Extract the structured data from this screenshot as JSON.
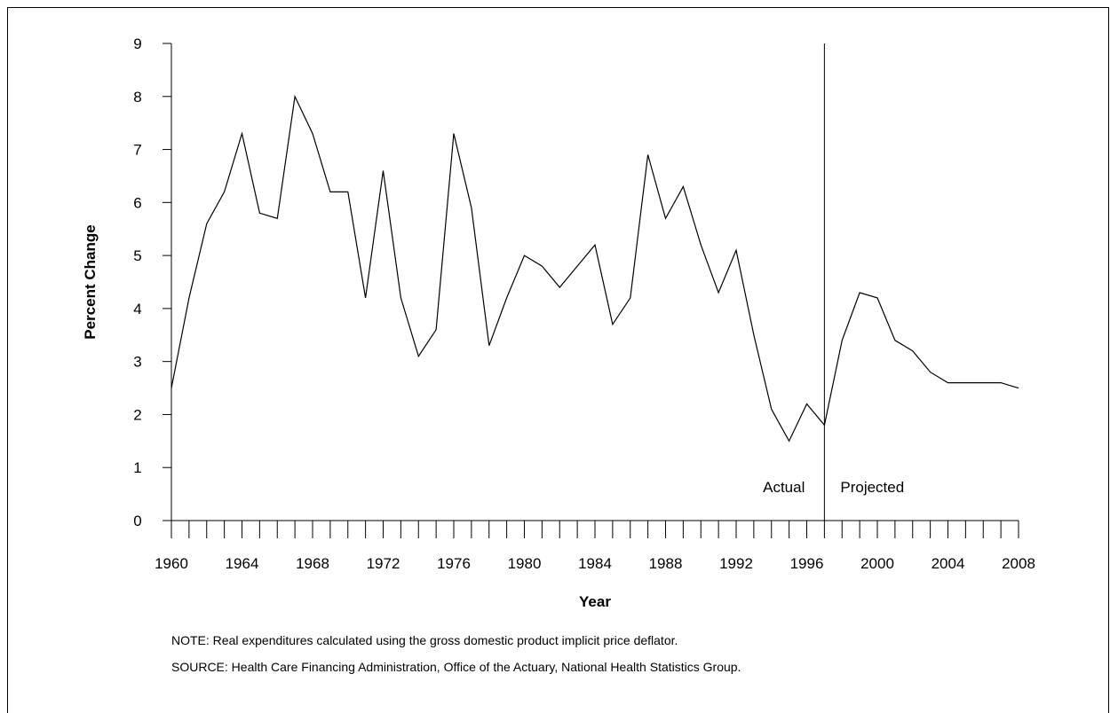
{
  "chart_data": {
    "type": "line",
    "xlabel": "Year",
    "ylabel": "Percent Change",
    "xlim": [
      1960,
      2008
    ],
    "ylim": [
      0,
      9
    ],
    "x_tick_labels": [
      "1960",
      "1964",
      "1968",
      "1972",
      "1976",
      "1980",
      "1984",
      "1988",
      "1992",
      "1996",
      "2000",
      "2004",
      "2008"
    ],
    "y_tick_labels": [
      "0",
      "1",
      "2",
      "3",
      "4",
      "5",
      "6",
      "7",
      "8",
      "9"
    ],
    "divider_year": 1997,
    "region_labels": {
      "actual": "Actual",
      "projected": "Projected"
    },
    "grid": false,
    "legend": "none",
    "line_color": "#000000",
    "series": [
      {
        "x": [
          1960,
          1961,
          1962,
          1963,
          1964,
          1965,
          1966,
          1967,
          1968,
          1969,
          1970,
          1971,
          1972,
          1973,
          1974,
          1975,
          1976,
          1977,
          1978,
          1979,
          1980,
          1981,
          1982,
          1983,
          1984,
          1985,
          1986,
          1987,
          1988,
          1989,
          1990,
          1991,
          1992,
          1993,
          1994,
          1995,
          1996,
          1997,
          1998,
          1999,
          2000,
          2001,
          2002,
          2003,
          2004,
          2005,
          2006,
          2007,
          2008
        ],
        "values": [
          2.5,
          4.2,
          5.6,
          6.2,
          7.3,
          5.8,
          5.7,
          8.0,
          7.3,
          6.2,
          6.2,
          4.2,
          6.6,
          4.2,
          3.1,
          3.6,
          7.3,
          5.9,
          3.3,
          4.2,
          5.0,
          4.8,
          4.4,
          4.8,
          5.2,
          3.7,
          4.2,
          6.9,
          5.7,
          6.3,
          5.2,
          4.3,
          5.1,
          3.5,
          2.1,
          1.5,
          2.2,
          1.8,
          3.4,
          4.3,
          4.2,
          3.4,
          3.2,
          2.8,
          2.6,
          2.6,
          2.6,
          2.6,
          2.5
        ]
      }
    ]
  },
  "notes": {
    "note": "NOTE: Real expenditures calculated using the gross domestic product implicit price deflator.",
    "source": "SOURCE: Health Care Financing Administration, Office of the Actuary, National Health Statistics Group."
  }
}
